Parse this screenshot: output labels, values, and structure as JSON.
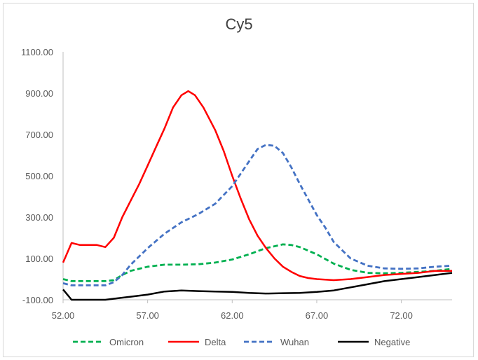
{
  "chart_data": {
    "type": "line",
    "title": "Cy5",
    "xlabel": "",
    "ylabel": "",
    "xlim": [
      52,
      75
    ],
    "ylim": [
      -100,
      1100
    ],
    "x_ticks": [
      "52.00",
      "57.00",
      "62.00",
      "67.00",
      "72.00"
    ],
    "y_ticks": [
      "-100.00",
      "100.00",
      "300.00",
      "500.00",
      "700.00",
      "900.00",
      "1100.00"
    ],
    "grid": false,
    "legend": "bottom",
    "series": [
      {
        "name": "Omicron",
        "color": "#00b050",
        "dash": "dashed",
        "points": [
          [
            52,
            0
          ],
          [
            52.5,
            -10
          ],
          [
            53,
            -10
          ],
          [
            54,
            -10
          ],
          [
            54.5,
            -10
          ],
          [
            55,
            -5
          ],
          [
            55.5,
            20
          ],
          [
            56,
            40
          ],
          [
            57,
            60
          ],
          [
            58,
            70
          ],
          [
            59,
            70
          ],
          [
            60,
            72
          ],
          [
            61,
            80
          ],
          [
            62,
            95
          ],
          [
            63,
            120
          ],
          [
            64,
            150
          ],
          [
            65,
            168
          ],
          [
            65.5,
            165
          ],
          [
            66,
            155
          ],
          [
            67,
            120
          ],
          [
            68,
            75
          ],
          [
            69,
            45
          ],
          [
            70,
            30
          ],
          [
            71,
            28
          ],
          [
            72,
            30
          ],
          [
            73,
            35
          ],
          [
            74,
            40
          ],
          [
            75,
            50
          ]
        ]
      },
      {
        "name": "Delta",
        "color": "#ff0000",
        "dash": "solid",
        "points": [
          [
            52,
            80
          ],
          [
            52.5,
            175
          ],
          [
            53,
            165
          ],
          [
            54,
            165
          ],
          [
            54.5,
            155
          ],
          [
            55,
            200
          ],
          [
            55.5,
            300
          ],
          [
            56,
            380
          ],
          [
            56.5,
            460
          ],
          [
            57,
            550
          ],
          [
            57.5,
            640
          ],
          [
            58,
            730
          ],
          [
            58.5,
            830
          ],
          [
            59,
            890
          ],
          [
            59.4,
            910
          ],
          [
            59.8,
            890
          ],
          [
            60.3,
            830
          ],
          [
            61,
            720
          ],
          [
            61.5,
            620
          ],
          [
            62,
            500
          ],
          [
            62.5,
            390
          ],
          [
            63,
            290
          ],
          [
            63.5,
            210
          ],
          [
            64,
            150
          ],
          [
            64.5,
            100
          ],
          [
            65,
            60
          ],
          [
            65.5,
            35
          ],
          [
            66,
            15
          ],
          [
            66.5,
            5
          ],
          [
            67,
            0
          ],
          [
            68,
            -5
          ],
          [
            69,
            0
          ],
          [
            70,
            10
          ],
          [
            71,
            20
          ],
          [
            72,
            25
          ],
          [
            73,
            30
          ],
          [
            74,
            40
          ],
          [
            75,
            40
          ]
        ]
      },
      {
        "name": "Wuhan",
        "color": "#4472c4",
        "dash": "dashed",
        "points": [
          [
            52,
            -20
          ],
          [
            52.5,
            -30
          ],
          [
            53,
            -30
          ],
          [
            54,
            -30
          ],
          [
            54.5,
            -30
          ],
          [
            55,
            -15
          ],
          [
            55.5,
            20
          ],
          [
            56,
            70
          ],
          [
            57,
            150
          ],
          [
            58,
            220
          ],
          [
            59,
            275
          ],
          [
            60,
            315
          ],
          [
            61,
            365
          ],
          [
            62,
            450
          ],
          [
            63,
            570
          ],
          [
            63.5,
            630
          ],
          [
            64,
            650
          ],
          [
            64.5,
            645
          ],
          [
            65,
            610
          ],
          [
            65.5,
            540
          ],
          [
            66,
            460
          ],
          [
            67,
            310
          ],
          [
            67.5,
            250
          ],
          [
            68,
            180
          ],
          [
            69,
            100
          ],
          [
            70,
            65
          ],
          [
            71,
            52
          ],
          [
            72,
            50
          ],
          [
            73,
            52
          ],
          [
            74,
            60
          ],
          [
            75,
            65
          ]
        ]
      },
      {
        "name": "Negative",
        "color": "#000000",
        "dash": "solid",
        "points": [
          [
            52,
            -50
          ],
          [
            52.5,
            -100
          ],
          [
            53,
            -100
          ],
          [
            54,
            -100
          ],
          [
            54.5,
            -100
          ],
          [
            55,
            -95
          ],
          [
            56,
            -85
          ],
          [
            57,
            -75
          ],
          [
            58,
            -60
          ],
          [
            59,
            -55
          ],
          [
            60,
            -58
          ],
          [
            61,
            -60
          ],
          [
            62,
            -62
          ],
          [
            63,
            -67
          ],
          [
            64,
            -70
          ],
          [
            65,
            -68
          ],
          [
            66,
            -67
          ],
          [
            67,
            -62
          ],
          [
            68,
            -55
          ],
          [
            69,
            -40
          ],
          [
            70,
            -25
          ],
          [
            71,
            -10
          ],
          [
            72,
            0
          ],
          [
            73,
            10
          ],
          [
            74,
            20
          ],
          [
            75,
            30
          ]
        ]
      }
    ]
  }
}
